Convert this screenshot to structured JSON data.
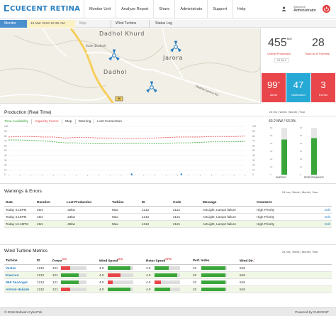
{
  "brand": {
    "name": "CUECENT RETINA",
    "logo_color": "#2a7fc1"
  },
  "nav": {
    "items": [
      "Monitor Unit",
      "Analyze Report",
      "Share",
      "Administrate",
      "Support",
      "Help"
    ]
  },
  "user": {
    "welcome": "Welcome",
    "name": "Administrator"
  },
  "tabbar": {
    "active": "Monitor",
    "datetime": "15 Mar 2016 10:30 AM",
    "tabs": [
      "Map",
      "Wind Turbine",
      "Status Log"
    ]
  },
  "map": {
    "labels": [
      "Dadhol Khurd",
      "Jarora",
      "Dadhol",
      "Dadhol-Jarora Rd",
      "Sude (Dadhol)"
    ],
    "road_badge": "88"
  },
  "summary": {
    "production_value": "455",
    "production_unit": "MW",
    "production_label": "Overall Production",
    "turbines_value": "28",
    "turbines_label": "Total no of Turbines",
    "period": "24 hrs",
    "tiles": [
      {
        "value": "99",
        "suffix": "+",
        "label": "Alerts",
        "color": "#e8464a"
      },
      {
        "value": "47",
        "suffix": "",
        "label": "Notification",
        "color": "#27a9d6"
      },
      {
        "value": "3",
        "suffix": "",
        "label": "Events",
        "color": "#e8464a"
      }
    ]
  },
  "production": {
    "title": "Production (Real Time)",
    "filters": [
      "24 hrs",
      "Week",
      "Month",
      "Year"
    ],
    "legend": [
      {
        "label": "Time Availability",
        "color": "#3aa63a"
      },
      {
        "label": "Capacity Factor",
        "color": "#e8464a"
      },
      {
        "label": "Stop",
        "color": "#333333"
      },
      {
        "label": "Warning",
        "color": "#333333"
      },
      {
        "label": "Lost Connection",
        "color": "#333333"
      }
    ],
    "chart_data": {
      "type": "line",
      "ylim": [
        0,
        100
      ],
      "yticks": [
        0,
        10,
        20,
        30,
        40,
        50,
        60,
        70,
        80,
        90,
        100
      ],
      "ytick_labels": [
        "0",
        "10",
        "20",
        "30",
        "40",
        "50",
        "60",
        "70",
        "80",
        "90",
        "100"
      ],
      "x": [
        0,
        1,
        2,
        3,
        4,
        5,
        6,
        7,
        8,
        9,
        10,
        11,
        12,
        13,
        14,
        15,
        16,
        17,
        18,
        19,
        20,
        21
      ],
      "series": [
        {
          "color": "#3aa63a",
          "values": [
            72,
            72,
            71,
            70,
            68,
            66,
            66,
            65,
            64,
            64,
            65,
            65,
            65,
            64,
            65,
            66,
            66,
            67,
            68,
            68,
            68,
            69
          ]
        },
        {
          "color": "#e8464a",
          "values": [
            78,
            79,
            79,
            78,
            78,
            76,
            77,
            77,
            76,
            76,
            75,
            75,
            75,
            76,
            77,
            78,
            78,
            78,
            79,
            79,
            79,
            80
          ]
        }
      ]
    },
    "gauges": {
      "header": "40.2 MW / 53.0%",
      "energy_label": "ENERGY",
      "performance_label": "PERFORMANCE",
      "energy_fill": 0.75,
      "performance_fill": 0.78,
      "scale": [
        "60",
        "50",
        "40",
        "30",
        "20",
        "10",
        "0"
      ]
    }
  },
  "warnings": {
    "title": "Warnings & Errors",
    "filters": [
      "24 hrs",
      "Week",
      "Month",
      "Year"
    ],
    "columns": [
      "Date",
      "Duration",
      "Lost Production",
      "Turbine",
      "ID",
      "Code",
      "Message",
      "Comment",
      ""
    ],
    "rows": [
      [
        "Today 4.15PM",
        "45m",
        ".45kw",
        "Max",
        "1212",
        "2121",
        "AvtLight, Lamp2 failure",
        "High Priority",
        "Edit"
      ],
      [
        "Today 4.15PM",
        "15m",
        ".23kw",
        "Max",
        "1212",
        "2121",
        "AvtLight, Lamp2 failure",
        "High Priority",
        "Edit"
      ],
      [
        "Today 12.15PM",
        "45m",
        ".45kw",
        "Max",
        "1212",
        "2121",
        "AvtLight, Lamp2 failure",
        "High Priority",
        "Edit"
      ]
    ]
  },
  "wtm": {
    "title": "Wind Turbine Metrics",
    "filters": [
      "24 hrs",
      "Week",
      "Month",
      "Year"
    ],
    "columns": [
      "Turbine",
      "ID",
      "Power",
      "Wind Speed",
      "Rotor Speed",
      "Perf. Index",
      "Wind Dir."
    ],
    "rows": [
      {
        "turbine": "Vestas",
        "id": "1212",
        "power": "121",
        "power_fill": 0.35,
        "power_color": "#e8464a",
        "wind": "4.0",
        "wind_fill": 0.9,
        "wind_color": "#3aa63a",
        "rotor": "4.0",
        "rotor_fill": 0.55,
        "rotor_color": "#3aa63a",
        "perf": "10",
        "perf_fill": 0.95,
        "perf_color": "#3aa63a",
        "dir": "54S"
      },
      {
        "turbine": "Enercon",
        "id": "1212",
        "power": "121",
        "power_fill": 0.7,
        "power_color": "#3aa63a",
        "wind": "4.0",
        "wind_fill": 0.5,
        "wind_color": "#e8464a",
        "rotor": "4.0",
        "rotor_fill": 0.9,
        "rotor_color": "#3aa63a",
        "perf": "10",
        "perf_fill": 0.95,
        "perf_color": "#3aa63a",
        "dir": "54S"
      },
      {
        "turbine": "MHI SeaAngel",
        "id": "1212",
        "power": "121",
        "power_fill": 0.7,
        "power_color": "#3aa63a",
        "wind": "4.0",
        "wind_fill": 0.2,
        "wind_color": "#e8464a",
        "rotor": "4.0",
        "rotor_fill": 0.25,
        "rotor_color": "#e8464a",
        "perf": "10",
        "perf_fill": 0.95,
        "perf_color": "#3aa63a",
        "dir": "54S"
      },
      {
        "turbine": "Alstom Haliade",
        "id": "1212",
        "power": "121",
        "power_fill": 0.35,
        "power_color": "#e8464a",
        "wind": "4.0",
        "wind_fill": 0.9,
        "wind_color": "#3aa63a",
        "rotor": "4.0",
        "rotor_fill": 0.6,
        "rotor_color": "#3aa63a",
        "perf": "10",
        "perf_fill": 0.95,
        "perf_color": "#3aa63a",
        "dir": "54S"
      }
    ]
  },
  "footer": {
    "left": "© 2016 Bahwan CyberTek",
    "right": "Powered by CUECENT"
  }
}
